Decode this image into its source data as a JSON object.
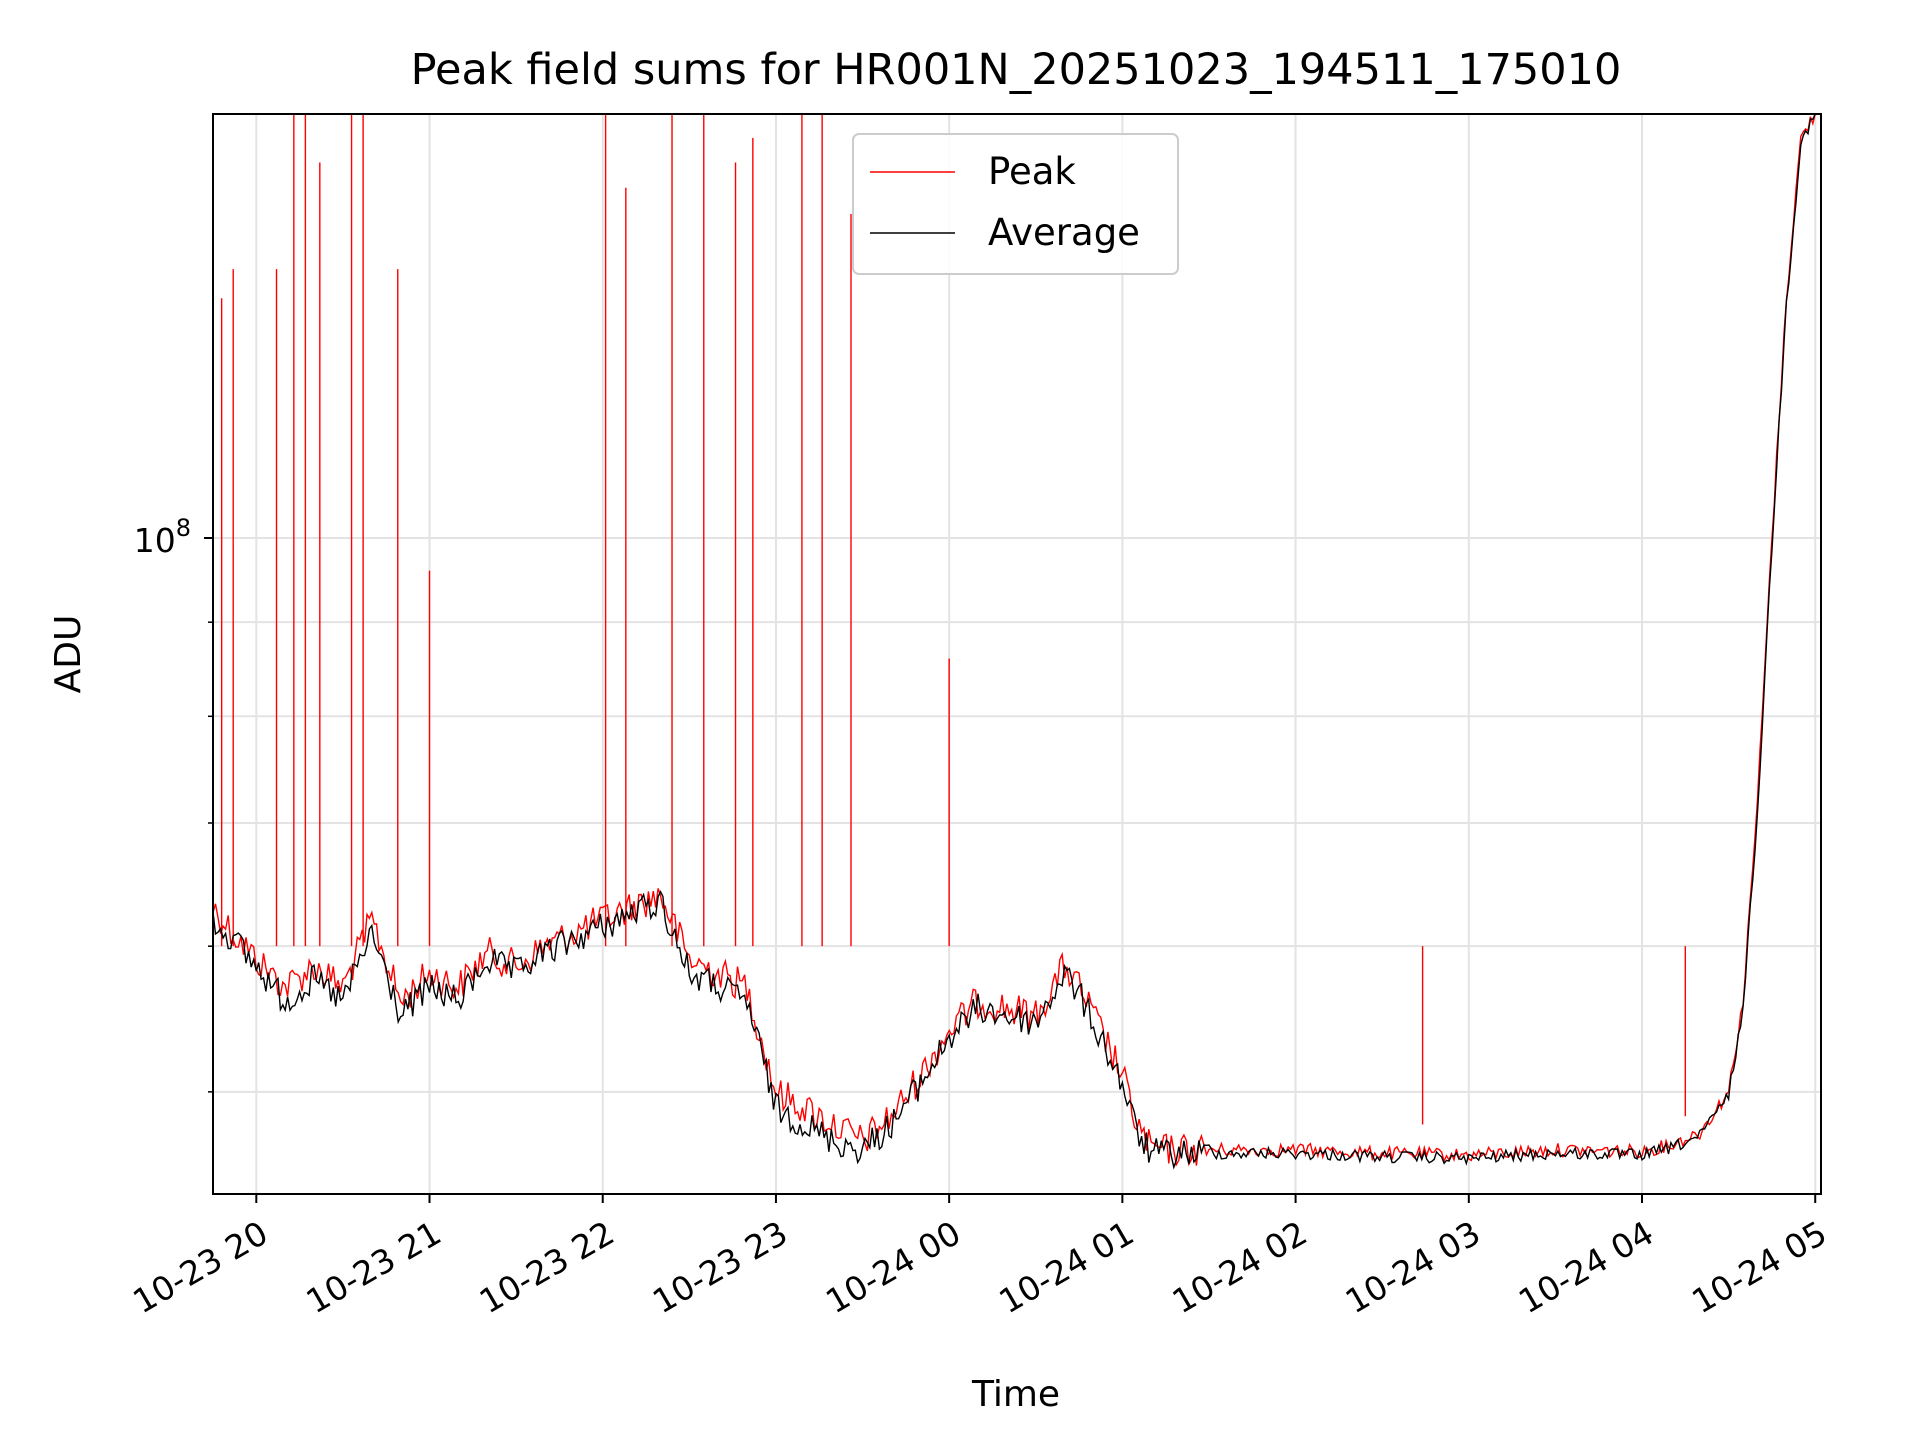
{
  "chart_data": {
    "type": "line",
    "title": "Peak field sums for HR001N_20251023_194511_175010",
    "xlabel": "Time",
    "ylabel": "ADU",
    "yscale": "log",
    "xlim": [
      "2025-10-23T19:45:00",
      "2025-10-24T05:02:00"
    ],
    "ylim": [
      44000000,
      170000000
    ],
    "x_ticks": [
      "10-23 20",
      "10-23 21",
      "10-23 22",
      "10-23 23",
      "10-24 00",
      "10-24 01",
      "10-24 02",
      "10-24 03",
      "10-24 04",
      "10-24 05"
    ],
    "y_tick_label": {
      "base": "10",
      "exponent": "8",
      "value": 100000000
    },
    "grid": true,
    "legend_position": "top-center",
    "series": [
      {
        "name": "Peak",
        "color": "#ff0000",
        "x": [
          "2025-10-23T19:45:00",
          "2025-10-23T19:52:00",
          "2025-10-23T20:00:00",
          "2025-10-23T20:10:00",
          "2025-10-23T20:20:00",
          "2025-10-23T20:30:00",
          "2025-10-23T20:40:00",
          "2025-10-23T20:50:00",
          "2025-10-23T21:00:00",
          "2025-10-23T21:10:00",
          "2025-10-23T21:20:00",
          "2025-10-23T21:30:00",
          "2025-10-23T21:40:00",
          "2025-10-23T21:50:00",
          "2025-10-23T22:00:00",
          "2025-10-23T22:10:00",
          "2025-10-23T22:20:00",
          "2025-10-23T22:30:00",
          "2025-10-23T22:40:00",
          "2025-10-23T22:50:00",
          "2025-10-23T23:00:00",
          "2025-10-23T23:10:00",
          "2025-10-23T23:20:00",
          "2025-10-23T23:30:00",
          "2025-10-23T23:40:00",
          "2025-10-23T23:50:00",
          "2025-10-24T00:00:00",
          "2025-10-24T00:10:00",
          "2025-10-24T00:20:00",
          "2025-10-24T00:30:00",
          "2025-10-24T00:40:00",
          "2025-10-24T00:45:00",
          "2025-10-24T00:50:00",
          "2025-10-24T00:55:00",
          "2025-10-24T01:00:00",
          "2025-10-24T01:05:00",
          "2025-10-24T01:10:00",
          "2025-10-24T01:30:00",
          "2025-10-24T02:00:00",
          "2025-10-24T02:30:00",
          "2025-10-24T03:00:00",
          "2025-10-24T03:30:00",
          "2025-10-24T04:00:00",
          "2025-10-24T04:10:00",
          "2025-10-24T04:20:00",
          "2025-10-24T04:30:00",
          "2025-10-24T04:35:00",
          "2025-10-24T04:40:00",
          "2025-10-24T04:45:00",
          "2025-10-24T04:50:00",
          "2025-10-24T04:55:00",
          "2025-10-24T05:00:00"
        ],
        "values": [
          63000000,
          61000000,
          59000000,
          57000000,
          58500000,
          57000000,
          62000000,
          56000000,
          58000000,
          57000000,
          59500000,
          58500000,
          60000000,
          61000000,
          62000000,
          63000000,
          64000000,
          59000000,
          58000000,
          57000000,
          50000000,
          49000000,
          48000000,
          47000000,
          48500000,
          51000000,
          54000000,
          56000000,
          55500000,
          55000000,
          58500000,
          57000000,
          55000000,
          53000000,
          51000000,
          48000000,
          46500000,
          46500000,
          46500000,
          46300000,
          46200000,
          46500000,
          46400000,
          46800000,
          47500000,
          50000000,
          56000000,
          72000000,
          100000000,
          135000000,
          165000000,
          170000000
        ],
        "spikes": [
          {
            "x": "2025-10-23T19:48:00",
            "y": 135000000
          },
          {
            "x": "2025-10-23T19:52:00",
            "y": 140000000
          },
          {
            "x": "2025-10-23T20:07:00",
            "y": 140000000
          },
          {
            "x": "2025-10-23T20:13:00",
            "y": 170000000
          },
          {
            "x": "2025-10-23T20:17:00",
            "y": 170000000
          },
          {
            "x": "2025-10-23T20:22:00",
            "y": 160000000
          },
          {
            "x": "2025-10-23T20:33:00",
            "y": 170000000
          },
          {
            "x": "2025-10-23T20:37:00",
            "y": 170000000
          },
          {
            "x": "2025-10-23T20:49:00",
            "y": 140000000
          },
          {
            "x": "2025-10-23T21:00:00",
            "y": 96000000
          },
          {
            "x": "2025-10-23T22:01:00",
            "y": 170000000
          },
          {
            "x": "2025-10-23T22:08:00",
            "y": 155000000
          },
          {
            "x": "2025-10-23T22:24:00",
            "y": 170000000
          },
          {
            "x": "2025-10-23T22:35:00",
            "y": 170000000
          },
          {
            "x": "2025-10-23T22:46:00",
            "y": 160000000
          },
          {
            "x": "2025-10-23T22:52:00",
            "y": 165000000
          },
          {
            "x": "2025-10-23T23:09:00",
            "y": 170000000
          },
          {
            "x": "2025-10-23T23:16:00",
            "y": 170000000
          },
          {
            "x": "2025-10-23T23:26:00",
            "y": 150000000
          },
          {
            "x": "2025-10-24T00:00:00",
            "y": 86000000
          },
          {
            "x": "2025-10-24T02:44:00",
            "y": 48000000
          },
          {
            "x": "2025-10-24T04:15:00",
            "y": 48500000
          }
        ]
      },
      {
        "name": "Average",
        "color": "#000000",
        "x": [
          "2025-10-23T19:45:00",
          "2025-10-23T19:52:00",
          "2025-10-23T20:00:00",
          "2025-10-23T20:10:00",
          "2025-10-23T20:20:00",
          "2025-10-23T20:30:00",
          "2025-10-23T20:40:00",
          "2025-10-23T20:50:00",
          "2025-10-23T21:00:00",
          "2025-10-23T21:10:00",
          "2025-10-23T21:20:00",
          "2025-10-23T21:30:00",
          "2025-10-23T21:40:00",
          "2025-10-23T21:50:00",
          "2025-10-23T22:00:00",
          "2025-10-23T22:10:00",
          "2025-10-23T22:20:00",
          "2025-10-23T22:30:00",
          "2025-10-23T22:40:00",
          "2025-10-23T22:50:00",
          "2025-10-23T23:00:00",
          "2025-10-23T23:10:00",
          "2025-10-23T23:20:00",
          "2025-10-23T23:30:00",
          "2025-10-23T23:40:00",
          "2025-10-23T23:50:00",
          "2025-10-24T00:00:00",
          "2025-10-24T00:10:00",
          "2025-10-24T00:20:00",
          "2025-10-24T00:30:00",
          "2025-10-24T00:40:00",
          "2025-10-24T00:45:00",
          "2025-10-24T00:50:00",
          "2025-10-24T00:55:00",
          "2025-10-24T01:00:00",
          "2025-10-24T01:05:00",
          "2025-10-24T01:10:00",
          "2025-10-24T01:30:00",
          "2025-10-24T02:00:00",
          "2025-10-24T02:30:00",
          "2025-10-24T03:00:00",
          "2025-10-24T03:30:00",
          "2025-10-24T04:00:00",
          "2025-10-24T04:10:00",
          "2025-10-24T04:20:00",
          "2025-10-24T04:30:00",
          "2025-10-24T04:35:00",
          "2025-10-24T04:40:00",
          "2025-10-24T04:45:00",
          "2025-10-24T04:50:00",
          "2025-10-24T04:55:00",
          "2025-10-24T05:00:00"
        ],
        "values": [
          62000000,
          60500000,
          58500000,
          56000000,
          57500000,
          56000000,
          61000000,
          55000000,
          57000000,
          56000000,
          59000000,
          58000000,
          59500000,
          60500000,
          61500000,
          62500000,
          63500000,
          58000000,
          57000000,
          56000000,
          49000000,
          48000000,
          47000000,
          46500000,
          48000000,
          50500000,
          53500000,
          55500000,
          55000000,
          54500000,
          58000000,
          56500000,
          54500000,
          52500000,
          50500000,
          47500000,
          46300000,
          46300000,
          46300000,
          46100000,
          46000000,
          46300000,
          46200000,
          46600000,
          47300000,
          49800000,
          55500000,
          71000000,
          99000000,
          134000000,
          164000000,
          170000000
        ]
      }
    ]
  }
}
